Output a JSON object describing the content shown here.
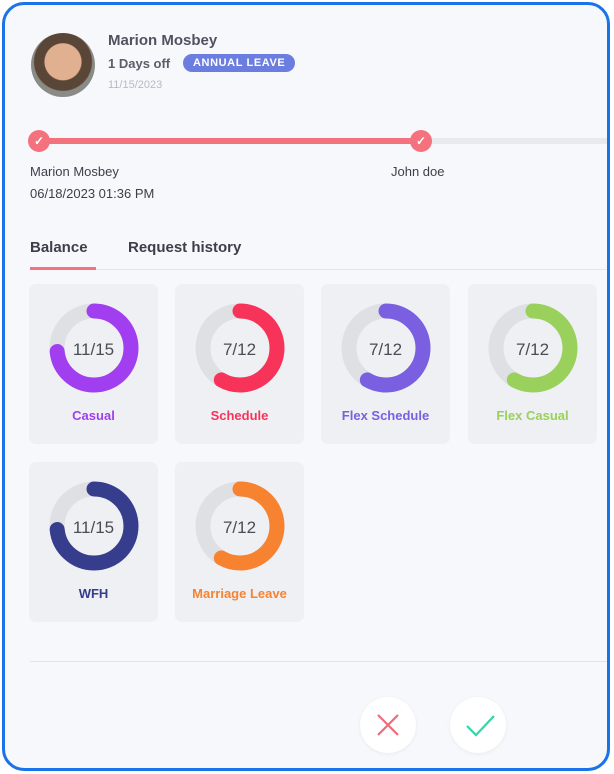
{
  "request": {
    "name": "Marion Mosbey",
    "days_off": "1 Days off",
    "leave_type": "ANNUAL LEAVE",
    "date": "11/15/2023"
  },
  "approval_steps": [
    {
      "name": "Marion Mosbey",
      "timestamp": "06/18/2023 01:36 PM"
    },
    {
      "name": "John doe"
    }
  ],
  "tabs": [
    {
      "label": "Balance"
    },
    {
      "label": "Request history"
    }
  ],
  "balances": [
    {
      "label": "Casual",
      "value_text": "11/15",
      "used": 11,
      "total": 15,
      "color": "#a13ef0"
    },
    {
      "label": "Schedule",
      "value_text": "7/12",
      "used": 7,
      "total": 12,
      "color": "#f7335a"
    },
    {
      "label": "Flex Schedule",
      "value_text": "7/12",
      "used": 7,
      "total": 12,
      "color": "#7a5fe0"
    },
    {
      "label": "Flex Casual",
      "value_text": "7/12",
      "used": 7,
      "total": 12,
      "color": "#99d15c"
    },
    {
      "label": "WFH",
      "value_text": "11/15",
      "used": 11,
      "total": 15,
      "color": "#353d8c"
    },
    {
      "label": "Marriage Leave",
      "value_text": "7/12",
      "used": 7,
      "total": 12,
      "color": "#f7822f"
    }
  ],
  "actions": {
    "reject": "x-icon",
    "approve": "check-icon"
  }
}
